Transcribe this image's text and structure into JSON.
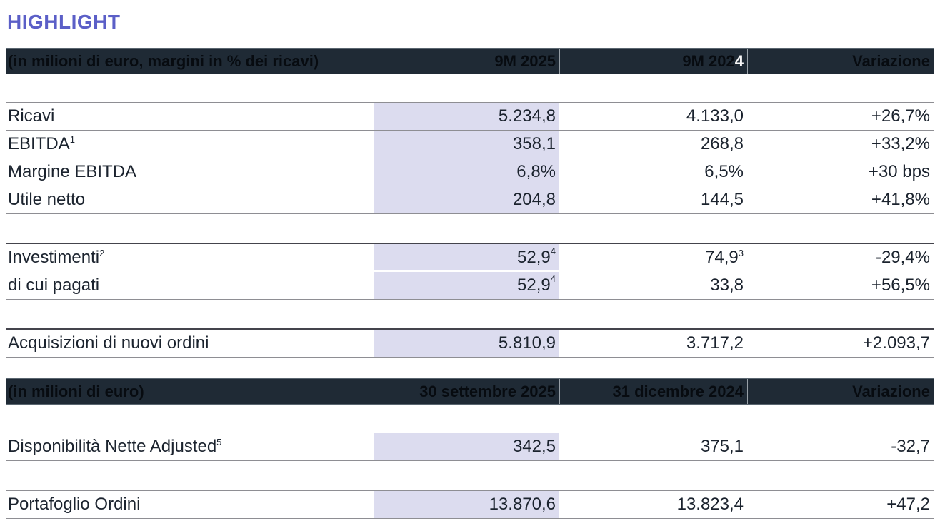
{
  "page": {
    "title": "HIGHLIGHT"
  },
  "colors": {
    "title_accent": "#5B5FC7",
    "header_bg": "#1F2A35",
    "highlight_column_bg": "#DCDCEF",
    "header_accent_text": "#FFFFFF"
  },
  "table1": {
    "header": {
      "label": "(in milioni di euro, margini in % dei ricavi)",
      "col_2025": "9M 2025",
      "col_2024_main": "9M 202",
      "col_2024_accent": "4",
      "col_var": "Variazione"
    },
    "rows": [
      {
        "label": "Ricavi",
        "v1": "5.234,8",
        "v2": "4.133,0",
        "var": "+26,7%"
      },
      {
        "label": "EBITDA",
        "label_sup": "1",
        "v1": "358,1",
        "v2": "268,8",
        "var": "+33,2%"
      },
      {
        "label": "Margine EBITDA",
        "v1": "6,8%",
        "v2": "6,5%",
        "var": "+30 bps"
      },
      {
        "label": "Utile netto",
        "v1": "204,8",
        "v2": "144,5",
        "var": "+41,8%"
      },
      {
        "label": "Investimenti",
        "label_sup": "2",
        "v1": "52,9",
        "v1_sup": "4",
        "v2": "74,9",
        "v2_sup": "3",
        "var": "-29,4%"
      },
      {
        "label": "di cui pagati",
        "v1": "52,9",
        "v1_sup": "4",
        "v2": "33,8",
        "var": "+56,5%"
      },
      {
        "label": "Acquisizioni di nuovi ordini",
        "v1": "5.810,9",
        "v2": "3.717,2",
        "var": "+2.093,7"
      }
    ]
  },
  "table2": {
    "header": {
      "label": "(in milioni di euro)",
      "col_sep2025": "30 settembre 2025",
      "col_dic2024": "31 dicembre 2024",
      "col_var": "Variazione"
    },
    "rows": [
      {
        "label": "Disponibilità Nette Adjusted",
        "label_sup": "5",
        "v1": "342,5",
        "v2": "375,1",
        "var": "-32,7"
      },
      {
        "label": "Portafoglio Ordini",
        "v1": "13.870,6",
        "v2": "13.823,4",
        "var": "+47,2"
      }
    ]
  }
}
